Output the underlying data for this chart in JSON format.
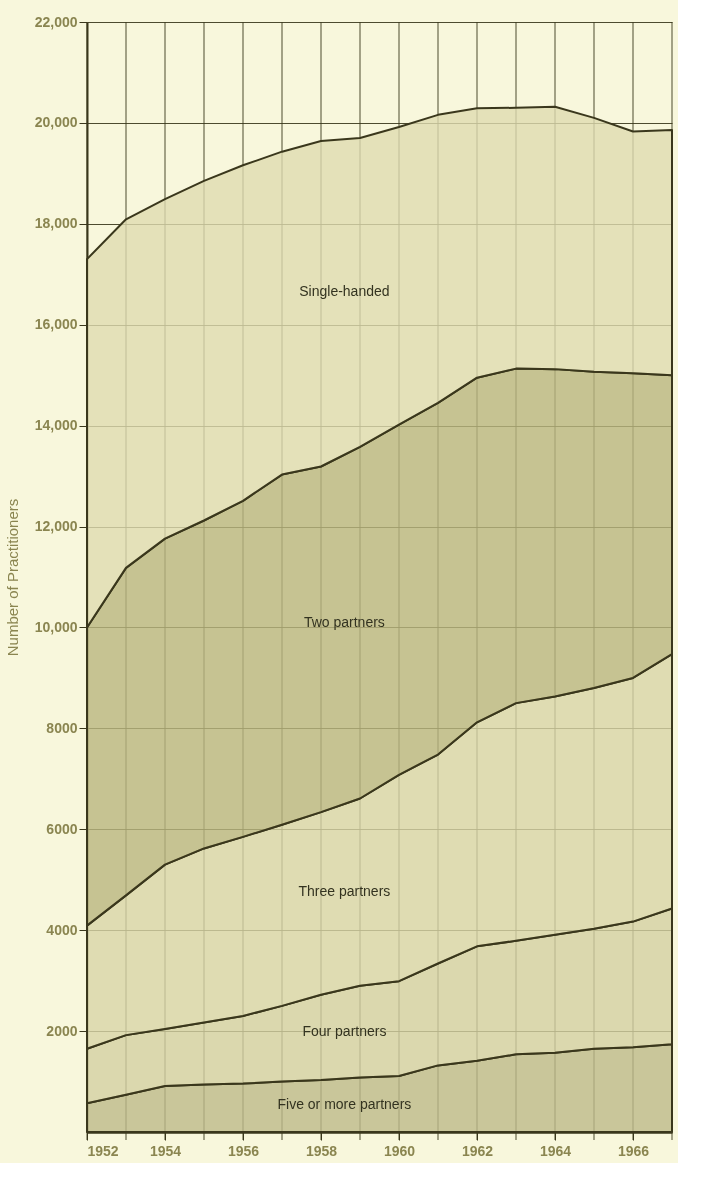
{
  "chart_data": {
    "type": "area",
    "stacked": true,
    "ylabel": "Number of Practitioners",
    "x": [
      1952,
      1953,
      1954,
      1955,
      1956,
      1957,
      1958,
      1959,
      1960,
      1961,
      1962,
      1963,
      1964,
      1965,
      1966,
      1967
    ],
    "xlim": [
      1952,
      1967
    ],
    "ylim": [
      0,
      22000
    ],
    "xticks": [
      1952,
      {
        "value": 1953,
        "label": null
      },
      1954,
      {
        "value": 1955,
        "label": null
      },
      1956,
      {
        "value": 1957,
        "label": null
      },
      1958,
      {
        "value": 1959,
        "label": null
      },
      1960,
      {
        "value": 1961,
        "label": null
      },
      1962,
      {
        "value": 1963,
        "label": null
      },
      1964,
      {
        "value": 1965,
        "label": null
      },
      1966,
      {
        "value": 1967,
        "label": null
      }
    ],
    "yticks": [
      2000,
      4000,
      6000,
      8000,
      {
        "value": 10000,
        "label": "10,000"
      },
      {
        "value": 12000,
        "label": "12,000"
      },
      {
        "value": 14000,
        "label": "14,000"
      },
      {
        "value": 16000,
        "label": "16,000"
      },
      {
        "value": 18000,
        "label": "18,000"
      },
      {
        "value": 20000,
        "label": "20,000"
      },
      {
        "value": 22000,
        "label": "22,000"
      }
    ],
    "grid": true,
    "series": [
      {
        "name": "Five or more partners",
        "color": "#bdb98a",
        "values": [
          570,
          740,
          910,
          940,
          960,
          1000,
          1030,
          1080,
          1110,
          1320,
          1410,
          1540,
          1570,
          1650,
          1680,
          1740
        ]
      },
      {
        "name": "Four partners",
        "color": "#d3d0a2",
        "values": [
          1080,
          1180,
          1130,
          1230,
          1340,
          1500,
          1690,
          1820,
          1880,
          2020,
          2270,
          2250,
          2340,
          2380,
          2490,
          2690
        ]
      },
      {
        "name": "Three partners",
        "color": "#d8d5a8",
        "values": [
          2440,
          2770,
          3260,
          3450,
          3550,
          3590,
          3620,
          3710,
          4090,
          4140,
          4440,
          4710,
          4720,
          4770,
          4830,
          5040
        ]
      },
      {
        "name": "Two partners",
        "color": "#b9b57f",
        "values": [
          5910,
          6490,
          6460,
          6500,
          6660,
          6940,
          6850,
          6970,
          6940,
          6970,
          6830,
          6630,
          6490,
          6270,
          6040,
          5530
        ]
      },
      {
        "name": "Single-handed",
        "color": "#dedbb0",
        "values": [
          7300,
          6910,
          6730,
          6730,
          6650,
          6400,
          6450,
          6120,
          5900,
          5710,
          5340,
          5170,
          5200,
          5030,
          4790,
          4860
        ]
      }
    ]
  }
}
